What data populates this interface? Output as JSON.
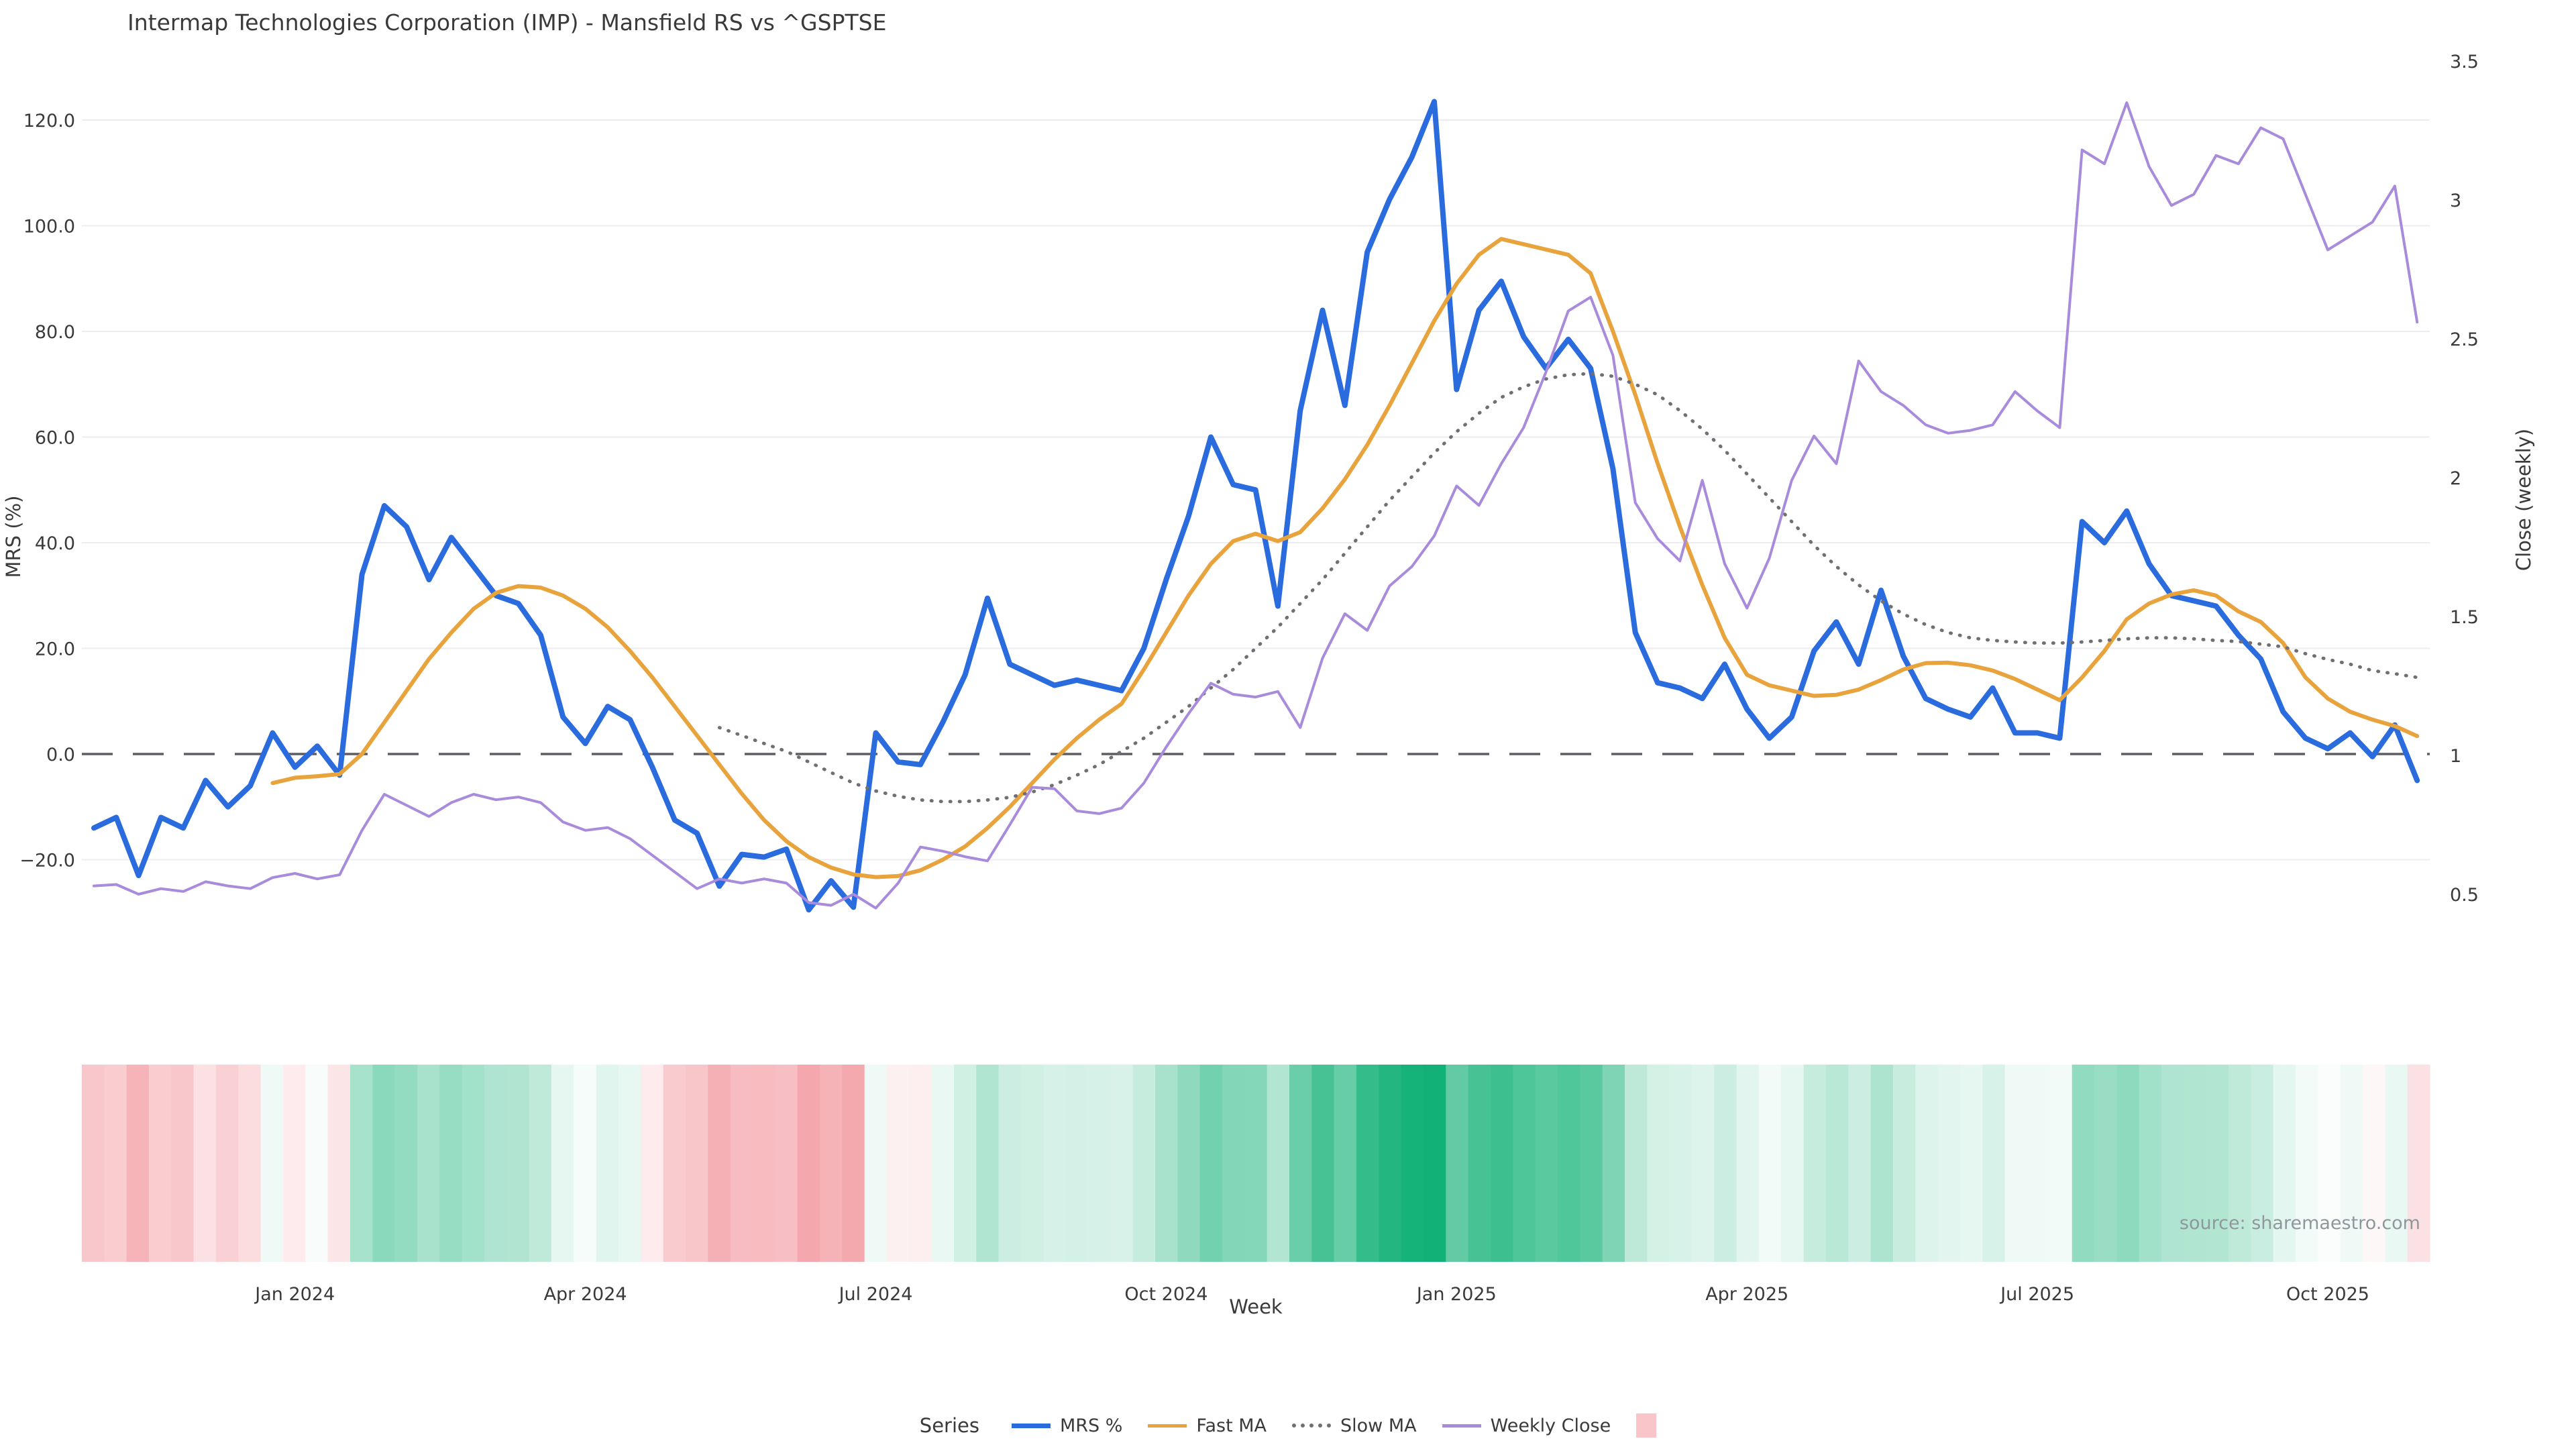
{
  "page": {
    "title": "Intermap Technologies Corporation (IMP) - Mansfield RS vs ^GSPTSE",
    "source_note": "source: sharemaestro.com",
    "background_color": "#ffffff"
  },
  "chart_data": {
    "type": "line",
    "title": "Intermap Technologies Corporation (IMP) - Mansfield RS vs ^GSPTSE",
    "xlabel": "Week",
    "ylabel_left": "MRS (%)",
    "ylabel_right": "Close (weekly)",
    "grid": "horizontal-only",
    "legend_position": "bottom-center",
    "n_points": 105,
    "x_frequency": "weekly",
    "x_tick_labels": [
      "Jan 2024",
      "Apr 2024",
      "Jul 2024",
      "Oct 2024",
      "Jan 2025",
      "Apr 2025",
      "Jul 2025",
      "Oct 2025"
    ],
    "x_tick_indices": [
      9,
      22,
      35,
      48,
      61,
      74,
      87,
      100
    ],
    "y_left_tick_labels": [
      "120.0",
      "100.0",
      "80.0",
      "60.0",
      "40.0",
      "20.0",
      "0.0",
      "−20.0"
    ],
    "y_left_tick_values": [
      120,
      100,
      80,
      60,
      40,
      20,
      0,
      -20
    ],
    "y_left_gridline_values": [
      120,
      100,
      80,
      60,
      40,
      20,
      -20
    ],
    "ylim_left": [
      -33,
      130
    ],
    "y_right_tick_labels": [
      "3.5",
      "3",
      "2.5",
      "2",
      "1.5",
      "1",
      "0.5"
    ],
    "y_right_tick_values": [
      3.5,
      3,
      2.5,
      2,
      1.5,
      1,
      0.5
    ],
    "ylim_right": [
      0.42,
      3.55
    ],
    "baseline": {
      "axis": "left",
      "value": 0,
      "style": "dashed",
      "color": "#5d5d64"
    },
    "series": [
      {
        "name": "MRS %",
        "axis": "left",
        "style": "solid",
        "color": "#2a6bdd",
        "width": 8,
        "values": [
          -14,
          -12,
          -23,
          -12,
          -14,
          -5,
          -10,
          -6,
          4,
          -2.5,
          1.5,
          -4,
          34,
          47,
          43,
          33,
          41,
          35.5,
          30,
          28.5,
          22.5,
          7,
          2,
          9,
          6.5,
          -2.5,
          -12.5,
          -15,
          -25,
          -19,
          -19.5,
          -18,
          -29.5,
          -24,
          -29,
          4,
          -1.5,
          -2,
          6,
          15,
          29.5,
          17,
          15,
          13,
          14,
          13,
          12,
          20,
          33,
          45,
          60,
          51,
          50,
          28,
          65,
          84,
          66,
          95,
          105,
          113,
          123.5,
          69,
          84,
          89.5,
          79,
          73,
          78.5,
          73,
          54,
          23,
          13.5,
          12.5,
          10.5,
          17,
          8.5,
          3,
          7,
          19.5,
          25,
          17,
          31,
          18.5,
          10.5,
          8.5,
          7,
          12.5,
          4,
          4,
          3,
          44,
          40,
          46,
          36,
          30,
          29,
          28,
          22.5,
          18,
          8,
          3,
          1,
          4,
          -0.5,
          5.5,
          -5
        ]
      },
      {
        "name": "Fast MA",
        "axis": "left",
        "style": "solid",
        "color": "#e8a33d",
        "width": 6,
        "values": [
          null,
          null,
          null,
          null,
          null,
          null,
          null,
          null,
          -5.5,
          -4.5,
          -4.2,
          -3.8,
          0,
          6,
          12,
          18,
          23,
          27.5,
          30.5,
          31.8,
          31.5,
          30,
          27.5,
          24,
          19.5,
          14.5,
          9,
          3.5,
          -2,
          -7.5,
          -12.5,
          -16.5,
          -19.5,
          -21.5,
          -22.8,
          -23.3,
          -23.1,
          -22,
          -20,
          -17.5,
          -14,
          -10,
          -5.5,
          -1,
          3,
          6.5,
          9.5,
          16,
          23,
          30,
          36,
          40.3,
          41.7,
          40.3,
          42,
          46.5,
          52,
          58.5,
          66,
          74,
          82,
          89,
          94.5,
          97.5,
          96.5,
          95.5,
          94.5,
          91,
          80,
          68,
          55,
          43,
          32,
          22,
          15,
          13,
          12,
          11,
          11.2,
          12.2,
          14,
          16,
          17.2,
          17.3,
          16.8,
          15.8,
          14.2,
          12.2,
          10.2,
          14.5,
          19.5,
          25.5,
          28.5,
          30.2,
          31,
          30,
          27,
          25,
          21,
          14.5,
          10.5,
          8,
          6.5,
          5.3,
          3.4
        ]
      },
      {
        "name": "Slow MA",
        "axis": "left",
        "style": "dotted",
        "color": "#6f6f74",
        "width": 5,
        "values": [
          null,
          null,
          null,
          null,
          null,
          null,
          null,
          null,
          null,
          null,
          null,
          null,
          null,
          null,
          null,
          null,
          null,
          null,
          null,
          null,
          null,
          null,
          null,
          null,
          null,
          null,
          null,
          null,
          5,
          3.5,
          2,
          0.5,
          -1.5,
          -3.5,
          -5.5,
          -7,
          -8,
          -8.7,
          -9,
          -9,
          -8.7,
          -8.2,
          -7.2,
          -5.8,
          -4,
          -2,
          0.5,
          3,
          6,
          9,
          12.5,
          16,
          20,
          24,
          28.5,
          33,
          38,
          43,
          48,
          52.5,
          57,
          61,
          64.5,
          67.5,
          69.5,
          71,
          71.8,
          72,
          71.5,
          70,
          68,
          65,
          61.5,
          57.5,
          53,
          48.5,
          44,
          39.5,
          35.5,
          32,
          29,
          26.5,
          24.5,
          23,
          22,
          21.5,
          21.2,
          21,
          21,
          21.2,
          21.5,
          21.8,
          22,
          22,
          21.8,
          21.5,
          21.3,
          20.8,
          20.3,
          19,
          17.9,
          17,
          15.8,
          15.2,
          14.5
        ]
      },
      {
        "name": "Weekly Close",
        "axis": "right",
        "style": "solid",
        "color": "#a98bdb",
        "width": 4,
        "values": [
          0.53,
          0.535,
          0.5,
          0.52,
          0.51,
          0.545,
          0.53,
          0.52,
          0.56,
          0.575,
          0.555,
          0.57,
          0.73,
          0.86,
          0.82,
          0.78,
          0.83,
          0.86,
          0.84,
          0.85,
          0.83,
          0.76,
          0.73,
          0.74,
          0.7,
          0.64,
          0.58,
          0.52,
          0.555,
          0.54,
          0.555,
          0.54,
          0.47,
          0.46,
          0.5,
          0.45,
          0.54,
          0.67,
          0.655,
          0.635,
          0.62,
          0.75,
          0.885,
          0.88,
          0.8,
          0.79,
          0.81,
          0.9,
          1.03,
          1.15,
          1.26,
          1.22,
          1.21,
          1.23,
          1.1,
          1.35,
          1.51,
          1.45,
          1.61,
          1.68,
          1.79,
          1.97,
          1.9,
          2.05,
          2.18,
          2.38,
          2.6,
          2.65,
          2.44,
          1.91,
          1.78,
          1.7,
          1.99,
          1.69,
          1.53,
          1.71,
          1.99,
          2.15,
          2.05,
          2.42,
          2.31,
          2.26,
          2.19,
          2.16,
          2.17,
          2.19,
          2.31,
          2.24,
          2.18,
          3.18,
          3.13,
          3.35,
          3.12,
          2.98,
          3.02,
          3.16,
          3.13,
          3.26,
          3.22,
          3.02,
          2.82,
          2.87,
          2.92,
          3.05,
          2.56
        ]
      }
    ],
    "heatmap_strip": {
      "based_on_series": "MRS %",
      "positive_color": "#12b177",
      "negative_color": "#f4a7ad",
      "neutral_color": "#ffffff"
    }
  },
  "legend": {
    "label": "Series",
    "items": [
      {
        "name": "MRS %",
        "color": "#2a6bdd",
        "style": "solid"
      },
      {
        "name": "Fast MA",
        "color": "#e8a33d",
        "style": "solid"
      },
      {
        "name": "Slow MA",
        "color": "#6f6f74",
        "style": "dotted"
      },
      {
        "name": "Weekly Close",
        "color": "#a98bdb",
        "style": "solid"
      }
    ],
    "extra_swatch_color": "#f9c5c9"
  },
  "colors": {
    "title_text": "#3a3a3a",
    "tick_text": "#3a3a3a",
    "gridline": "#ececf1",
    "source_text": "#8f979b"
  }
}
